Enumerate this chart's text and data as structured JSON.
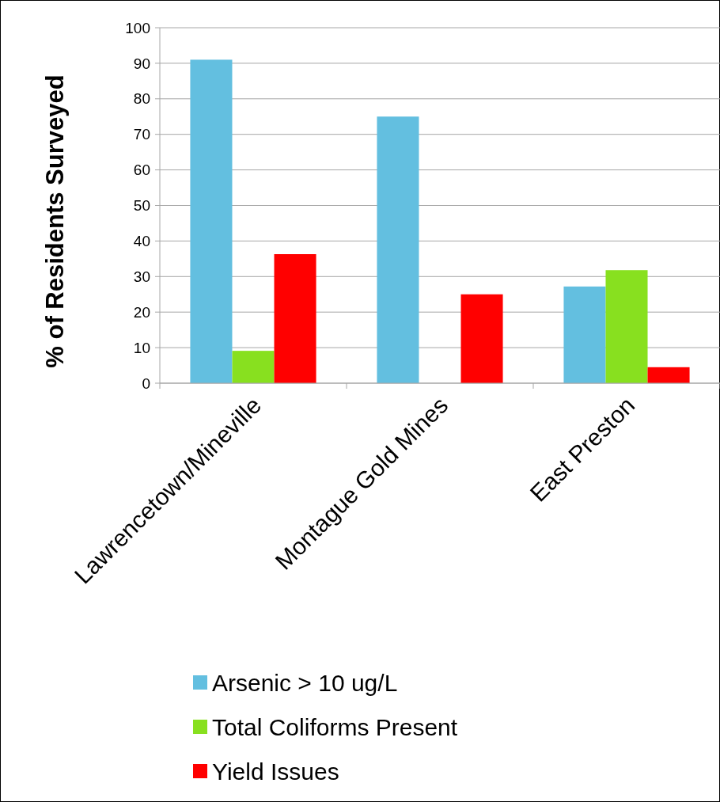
{
  "chart_data": {
    "type": "bar",
    "ylabel": "% of Residents Surveyed",
    "categories": [
      "Lawrencetown/Mineville",
      "Montague Gold Mines",
      "East Preston"
    ],
    "series": [
      {
        "name": "Arsenic > 10 ug/L",
        "color": "#63bfe0",
        "values": [
          91,
          75,
          27.2
        ]
      },
      {
        "name": "Total Coliforms Present",
        "color": "#88e01f",
        "values": [
          9.1,
          0,
          31.8
        ]
      },
      {
        "name": "Yield Issues",
        "color": "#ff0000",
        "values": [
          36.3,
          25,
          4.5
        ]
      }
    ],
    "ylim": [
      0,
      100
    ],
    "yticks": [
      0,
      10,
      20,
      30,
      40,
      50,
      60,
      70,
      80,
      90,
      100
    ],
    "grid": "y",
    "legend": "bottom"
  }
}
